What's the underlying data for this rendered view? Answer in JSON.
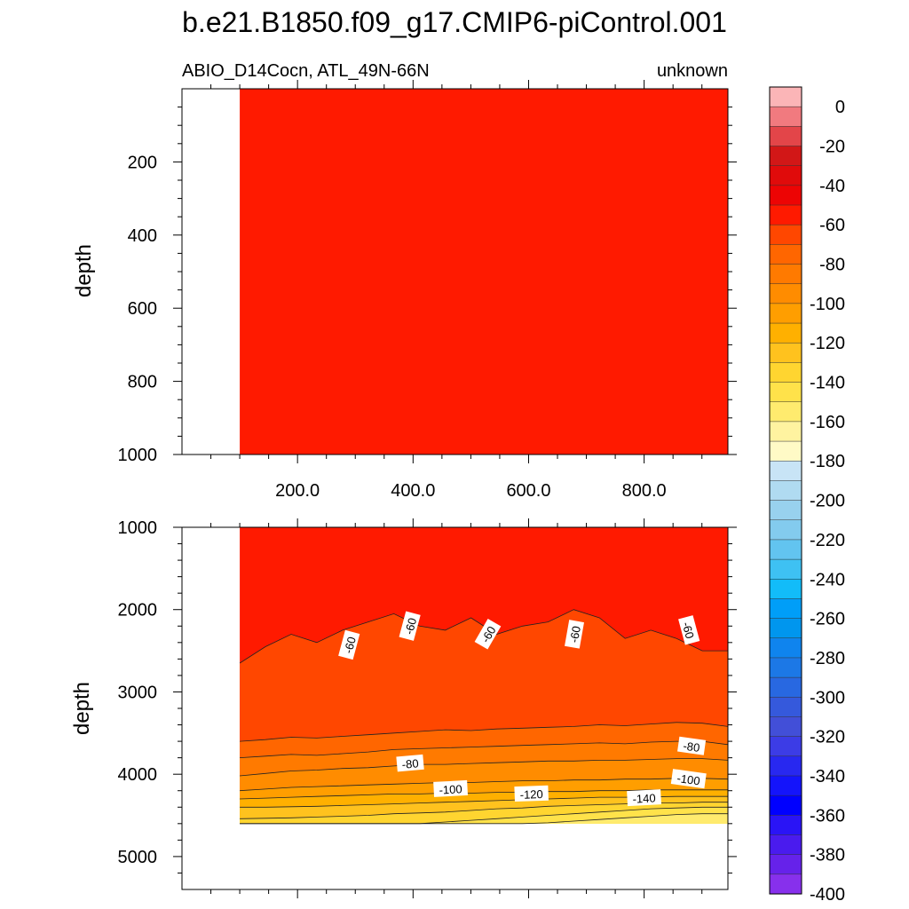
{
  "title": "b.e21.B1850.f09_g17.CMIP6-piControl.001",
  "chart_data": [
    {
      "type": "heatmap",
      "panel": "upper",
      "left_string": "ABIO_D14Cocn, ATL_49N-66N",
      "right_string": "unknown",
      "xlabel": "",
      "ylabel": "depth",
      "xlim": [
        0,
        945
      ],
      "ylim": [
        1000,
        0
      ],
      "x_ticks": [
        "200.0",
        "400.0",
        "600.0",
        "800.0"
      ],
      "x_tick_values": [
        200,
        400,
        600,
        800
      ],
      "y_ticks": [
        "200",
        "400",
        "600",
        "800",
        "1000"
      ],
      "y_tick_values": [
        200,
        400,
        600,
        800,
        1000
      ],
      "data_x_start": 100,
      "fill_value": -55,
      "description": "uniform field between -60 and -50 over the full 0-1000 m depth range"
    },
    {
      "type": "heatmap",
      "panel": "lower",
      "xlabel": "",
      "ylabel": "depth",
      "xlim": [
        0,
        945
      ],
      "ylim": [
        5400,
        1000
      ],
      "y_ticks": [
        "1000",
        "2000",
        "3000",
        "4000",
        "5000"
      ],
      "y_tick_values": [
        1000,
        2000,
        3000,
        4000,
        5000
      ],
      "data_x_start": 100,
      "data_depth_bottom": 4600,
      "bands": [
        {
          "value": -55,
          "top_depth": 1000
        },
        {
          "value": -65,
          "top_depth": [
            2650,
            2450,
            2300,
            2400,
            2250,
            2150,
            2050,
            2200,
            2250,
            2100,
            2300,
            2200,
            2150,
            2000,
            2100,
            2350,
            2250,
            2350,
            2500,
            2500
          ]
        },
        {
          "value": -75,
          "top_depth": [
            3600,
            3580,
            3550,
            3560,
            3540,
            3520,
            3500,
            3480,
            3460,
            3470,
            3450,
            3440,
            3430,
            3420,
            3400,
            3410,
            3390,
            3370,
            3380,
            3420
          ]
        },
        {
          "value": -85,
          "top_depth": [
            3800,
            3780,
            3760,
            3770,
            3750,
            3730,
            3700,
            3690,
            3680,
            3670,
            3660,
            3650,
            3640,
            3630,
            3620,
            3630,
            3610,
            3600,
            3600,
            3640
          ]
        },
        {
          "value": -95,
          "top_depth": [
            4020,
            3990,
            3960,
            3950,
            3930,
            3920,
            3900,
            3880,
            3880,
            3870,
            3860,
            3850,
            3840,
            3840,
            3830,
            3830,
            3820,
            3810,
            3810,
            3830
          ]
        },
        {
          "value": -105,
          "top_depth": [
            4200,
            4180,
            4160,
            4150,
            4140,
            4130,
            4120,
            4110,
            4100,
            4100,
            4090,
            4080,
            4080,
            4070,
            4070,
            4060,
            4060,
            4050,
            4050,
            4060
          ]
        },
        {
          "value": -115,
          "top_depth": [
            4300,
            4290,
            4280,
            4270,
            4260,
            4250,
            4240,
            4240,
            4230,
            4230,
            4220,
            4220,
            4210,
            4210,
            4200,
            4200,
            4190,
            4190,
            4190,
            4190
          ]
        },
        {
          "value": -125,
          "top_depth": [
            4400,
            4400,
            4395,
            4390,
            4380,
            4370,
            4360,
            4350,
            4340,
            4330,
            4320,
            4310,
            4300,
            4290,
            4280,
            4280,
            4275,
            4270,
            4270,
            4270
          ]
        },
        {
          "value": -135,
          "top_depth": [
            4540,
            4535,
            4530,
            4520,
            4510,
            4500,
            4480,
            4470,
            4460,
            4440,
            4420,
            4410,
            4390,
            4380,
            4370,
            4360,
            4350,
            4350,
            4340,
            4340
          ]
        },
        {
          "value": -145,
          "top_depth": [
            4600,
            4600,
            4600,
            4600,
            4600,
            4600,
            4600,
            4600,
            4580,
            4560,
            4540,
            4520,
            4500,
            4480,
            4460,
            4440,
            4420,
            4410,
            4400,
            4400
          ]
        },
        {
          "value": -155,
          "top_depth": [
            4600,
            4600,
            4600,
            4600,
            4600,
            4600,
            4600,
            4600,
            4600,
            4600,
            4600,
            4600,
            4590,
            4570,
            4550,
            4530,
            4510,
            4490,
            4480,
            4480
          ]
        }
      ],
      "contour_labels": [
        {
          "text": "-60",
          "x": 290,
          "depth": 2430,
          "angle": -75
        },
        {
          "text": "-60",
          "x": 395,
          "depth": 2200,
          "angle": -75
        },
        {
          "text": "-60",
          "x": 530,
          "depth": 2300,
          "angle": -60
        },
        {
          "text": "-60",
          "x": 680,
          "depth": 2300,
          "angle": -80
        },
        {
          "text": "-60",
          "x": 877,
          "depth": 2250,
          "angle": 75
        },
        {
          "text": "-80",
          "x": 395,
          "depth": 3870,
          "angle": -5
        },
        {
          "text": "-80",
          "x": 882,
          "depth": 3660,
          "angle": 8
        },
        {
          "text": "-100",
          "x": 465,
          "depth": 4180,
          "angle": -3
        },
        {
          "text": "-120",
          "x": 605,
          "depth": 4240,
          "angle": -2
        },
        {
          "text": "-100",
          "x": 877,
          "depth": 4060,
          "angle": 8
        },
        {
          "text": "-140",
          "x": 800,
          "depth": 4290,
          "angle": -3
        }
      ]
    }
  ],
  "colorbar": {
    "labels": [
      "0",
      "-20",
      "-40",
      "-60",
      "-80",
      "-100",
      "-120",
      "-140",
      "-160",
      "-180",
      "-200",
      "-220",
      "-240",
      "-260",
      "-280",
      "-300",
      "-320",
      "-340",
      "-360",
      "-380",
      "-400"
    ],
    "colors": [
      "#fbb5b7",
      "#f17a7f",
      "#e34549",
      "#d21717",
      "#e00b0b",
      "#ed0404",
      "#ff1a00",
      "#ff4700",
      "#ff6600",
      "#ff7a00",
      "#ff8c00",
      "#ff9e00",
      "#ffb000",
      "#ffc21e",
      "#ffd530",
      "#ffe24a",
      "#ffeb6e",
      "#fff3a0",
      "#fffac6",
      "#c8e4f6",
      "#b0dbf1",
      "#98d1ee",
      "#83cbee",
      "#62c4f0",
      "#3ec1f3",
      "#12bcf9",
      "#009ef8",
      "#0096ee",
      "#0f84ee",
      "#1c78e6",
      "#2868e1",
      "#3559dc",
      "#424fd8",
      "#3c3ce6",
      "#2828f0",
      "#1414fb",
      "#0000ff",
      "#2a14f6",
      "#4a1bee",
      "#6622ea",
      "#8730ec"
    ]
  }
}
